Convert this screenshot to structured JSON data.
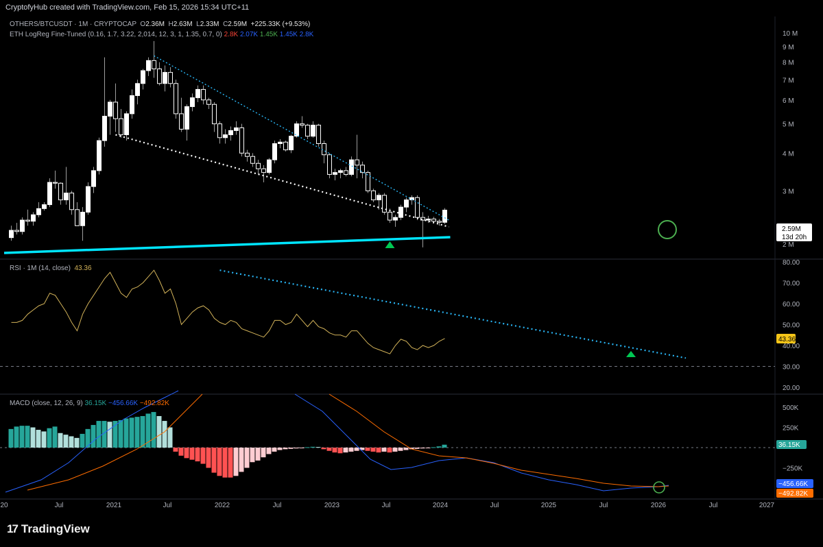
{
  "top_bar": {
    "credit": "CryptofyHub created with TradingView.com, Feb 15, 2026 15:34 UTC+11"
  },
  "header": {
    "symbol": "OTHERS/BTCUSDT · 1M · CRYPTOCAP",
    "ohlc": {
      "o_label": "O",
      "o": "2.36M",
      "h_label": "H",
      "h": "2.63M",
      "l_label": "L",
      "l": "2.33M",
      "c_label": "C",
      "c": "2.59M",
      "change": "+225.33K (+9.53%)"
    },
    "indicator": "ETH LogReg Fine-Tuned (0.16, 1.7, 3.22, 2,014, 12, 3, 1, 1.35, 0.7, 0)",
    "indicator_values": [
      {
        "text": "2.8K",
        "color": "#f44336"
      },
      {
        "text": "2.07K",
        "color": "#2962ff"
      },
      {
        "text": "1.45K",
        "color": "#4caf50"
      },
      {
        "text": "1.45K",
        "color": "#2962ff"
      },
      {
        "text": "2.8K",
        "color": "#2962ff"
      }
    ]
  },
  "price_axis": {
    "ticks": [
      "10 M",
      "9 M",
      "8 M",
      "7 M",
      "6 M",
      "5 M",
      "4 M",
      "3 M",
      "2 M"
    ]
  },
  "price_badge": {
    "value": "2.59M",
    "countdown": "13d 20h"
  },
  "rsi": {
    "label": "RSI · 1M (14, close)",
    "value": "43.36",
    "ticks": [
      "80.00",
      "70.00",
      "60.00",
      "50.00",
      "40.00",
      "30.00",
      "20.00"
    ]
  },
  "macd": {
    "label": "MACD (close, 12, 26, 9)",
    "values": [
      {
        "text": "36.15K",
        "color": "#26a69a"
      },
      {
        "text": "−456.66K",
        "color": "#2962ff"
      },
      {
        "text": "−492.82K",
        "color": "#ff6d00"
      }
    ],
    "ticks": [
      "500K",
      "250K",
      "−250K"
    ],
    "badges": [
      {
        "text": "36.15K",
        "color": "#26a69a"
      },
      {
        "text": "−456.66K",
        "color": "#2962ff"
      },
      {
        "text": "−492.82K",
        "color": "#ff6d00"
      }
    ]
  },
  "time_axis": {
    "labels": [
      "20",
      "Jul",
      "2021",
      "Jul",
      "2022",
      "Jul",
      "2023",
      "Jul",
      "2024",
      "Jul",
      "2025",
      "Jul",
      "2026",
      "Jul",
      "2027"
    ]
  },
  "brand": {
    "name": "TradingView"
  },
  "colors": {
    "candle_up": "#ffffff",
    "candle_down": "#ffffff",
    "wick": "#9e9e9e",
    "trend_upper": "#29b6f6",
    "trend_lower": "#ffffff",
    "support": "#00e5ff",
    "rsi_line": "#d4b45a",
    "rsi_trend": "#29b6f6",
    "macd_line": "#2962ff",
    "signal_line": "#ff6d00",
    "hist_pos_strong": "#26a69a",
    "hist_pos_weak": "#b2dfdb",
    "hist_neg_strong": "#ff5252",
    "hist_neg_weak": "#ffcdd2",
    "signal_circle": "#4caf50",
    "signal_arrow": "#00c853"
  },
  "chart_data": [
    {
      "type": "candlestick",
      "title": "OTHERS/BTCUSDT · 1M · CRYPTOCAP",
      "scale": "log",
      "ylim": [
        2000000,
        10000000
      ],
      "x_start": "2020-03",
      "interval": "1M",
      "ohlc": [
        [
          2.1,
          2.3,
          2.05,
          2.22
        ],
        [
          2.22,
          2.35,
          2.15,
          2.2
        ],
        [
          2.2,
          2.45,
          2.15,
          2.4
        ],
        [
          2.4,
          2.6,
          2.3,
          2.38
        ],
        [
          2.38,
          2.55,
          2.3,
          2.5
        ],
        [
          2.5,
          2.75,
          2.45,
          2.62
        ],
        [
          2.62,
          2.75,
          2.58,
          2.7
        ],
        [
          2.7,
          3.3,
          2.65,
          3.2
        ],
        [
          3.2,
          3.5,
          3.05,
          3.18
        ],
        [
          3.18,
          3.2,
          2.7,
          2.8
        ],
        [
          2.8,
          3.6,
          2.7,
          2.95
        ],
        [
          2.95,
          3.0,
          2.5,
          2.6
        ],
        [
          2.6,
          2.75,
          2.3,
          2.3
        ],
        [
          2.3,
          2.65,
          2.05,
          2.55
        ],
        [
          2.55,
          3.2,
          2.5,
          3.1
        ],
        [
          3.1,
          3.6,
          2.95,
          3.5
        ],
        [
          3.5,
          4.5,
          3.4,
          4.4
        ],
        [
          4.4,
          8.3,
          4.2,
          5.3
        ],
        [
          5.3,
          6.0,
          4.6,
          5.9
        ],
        [
          5.9,
          6.8,
          4.7,
          5.2
        ],
        [
          5.2,
          5.6,
          4.5,
          4.6
        ],
        [
          4.6,
          5.5,
          4.4,
          5.4
        ],
        [
          5.4,
          6.5,
          5.2,
          6.2
        ],
        [
          6.2,
          7.0,
          5.8,
          6.8
        ],
        [
          6.8,
          7.6,
          6.5,
          7.5
        ],
        [
          7.5,
          8.3,
          7.2,
          8.1
        ],
        [
          8.1,
          9.4,
          7.1,
          7.6
        ],
        [
          7.6,
          8.0,
          6.7,
          6.8
        ],
        [
          6.8,
          7.8,
          6.4,
          7.4
        ],
        [
          7.4,
          7.7,
          6.6,
          6.8
        ],
        [
          6.8,
          7.0,
          5.2,
          5.4
        ],
        [
          5.4,
          6.1,
          4.7,
          4.8
        ],
        [
          4.8,
          5.8,
          4.4,
          5.7
        ],
        [
          5.7,
          6.3,
          5.5,
          6.1
        ],
        [
          6.1,
          6.7,
          5.9,
          6.5
        ],
        [
          6.5,
          6.7,
          5.8,
          6.0
        ],
        [
          6.0,
          6.1,
          5.6,
          5.8
        ],
        [
          5.8,
          5.9,
          4.7,
          5.0
        ],
        [
          5.0,
          5.1,
          4.3,
          4.5
        ],
        [
          4.5,
          4.8,
          4.3,
          4.6
        ],
        [
          4.6,
          4.9,
          4.4,
          4.75
        ],
        [
          4.75,
          5.1,
          4.6,
          4.85
        ],
        [
          4.85,
          5.0,
          3.9,
          4.0
        ],
        [
          4.0,
          4.1,
          3.75,
          3.9
        ],
        [
          3.9,
          4.0,
          3.6,
          3.7
        ],
        [
          3.7,
          3.8,
          3.4,
          3.55
        ],
        [
          3.55,
          3.65,
          3.2,
          3.45
        ],
        [
          3.45,
          3.85,
          3.4,
          3.8
        ],
        [
          3.8,
          4.4,
          3.7,
          4.3
        ],
        [
          4.3,
          4.45,
          4.15,
          4.35
        ],
        [
          4.35,
          4.4,
          4.05,
          4.1
        ],
        [
          4.1,
          4.6,
          4.0,
          4.55
        ],
        [
          4.55,
          5.1,
          4.5,
          5.0
        ],
        [
          5.0,
          5.3,
          4.85,
          4.95
        ],
        [
          4.95,
          5.0,
          4.45,
          4.55
        ],
        [
          4.55,
          5.1,
          4.5,
          4.95
        ],
        [
          4.95,
          5.0,
          4.2,
          4.3
        ],
        [
          4.3,
          4.4,
          3.7,
          3.95
        ],
        [
          3.95,
          4.0,
          3.3,
          3.4
        ],
        [
          3.4,
          3.55,
          3.25,
          3.45
        ],
        [
          3.45,
          3.55,
          3.3,
          3.5
        ],
        [
          3.5,
          3.6,
          3.35,
          3.4
        ],
        [
          3.4,
          3.9,
          3.35,
          3.8
        ],
        [
          3.8,
          4.6,
          3.3,
          3.65
        ],
        [
          3.65,
          3.75,
          3.3,
          3.45
        ],
        [
          3.45,
          3.5,
          2.95,
          3.0
        ],
        [
          3.0,
          3.05,
          2.75,
          2.8
        ],
        [
          2.8,
          2.95,
          2.6,
          2.9
        ],
        [
          2.9,
          2.95,
          2.5,
          2.55
        ],
        [
          2.55,
          2.62,
          2.35,
          2.4
        ],
        [
          2.4,
          2.5,
          2.28,
          2.45
        ],
        [
          2.45,
          2.7,
          2.4,
          2.65
        ],
        [
          2.65,
          2.85,
          2.55,
          2.8
        ],
        [
          2.8,
          2.9,
          2.7,
          2.85
        ],
        [
          2.85,
          2.9,
          2.4,
          2.45
        ],
        [
          2.45,
          2.55,
          1.95,
          2.4
        ],
        [
          2.4,
          2.48,
          2.35,
          2.42
        ],
        [
          2.42,
          2.46,
          2.36,
          2.38
        ],
        [
          2.38,
          2.42,
          2.3,
          2.36
        ],
        [
          2.36,
          2.63,
          2.33,
          2.59
        ]
      ],
      "annotations": [
        "descending wedge upper trendline",
        "descending wedge lower trendline",
        "horizontal support line",
        "breakout circle",
        "buy arrow"
      ]
    },
    {
      "type": "line",
      "title": "RSI · 1M (14, close)",
      "ylim": [
        20,
        80
      ],
      "reference_line": 30,
      "values": [
        51,
        51,
        52,
        55,
        57,
        59,
        60,
        65,
        64,
        60,
        56,
        51,
        47,
        55,
        60,
        64,
        68,
        72,
        75,
        70,
        65,
        63,
        67,
        68,
        70,
        73,
        76,
        71,
        65,
        67,
        60,
        50,
        53,
        56,
        58,
        59,
        57,
        53,
        51,
        50,
        52,
        51,
        48,
        47,
        46,
        45,
        44,
        47,
        52,
        52,
        50,
        51,
        55,
        52,
        49,
        52,
        49,
        48,
        46,
        45,
        45,
        44,
        47,
        47,
        44,
        41,
        39,
        38,
        37,
        36,
        40,
        43,
        42,
        39,
        38,
        40,
        39,
        40,
        42,
        43.36
      ]
    },
    {
      "type": "line",
      "title": "MACD (close, 12, 26, 9)",
      "ylim": [
        -540000,
        600000
      ],
      "series": [
        {
          "name": "Histogram",
          "values": [
            230,
            260,
            270,
            270,
            250,
            220,
            200,
            240,
            260,
            180,
            160,
            140,
            120,
            170,
            230,
            280,
            330,
            330,
            320,
            330,
            340,
            360,
            370,
            380,
            390,
            420,
            440,
            390,
            330,
            250,
            -50,
            -100,
            -130,
            -150,
            -170,
            -200,
            -250,
            -310,
            -350,
            -370,
            -370,
            -350,
            -300,
            -250,
            -180,
            -160,
            -120,
            -80,
            -50,
            -30,
            -20,
            -15,
            -10,
            -5,
            5,
            10,
            8,
            -20,
            -40,
            -60,
            -70,
            -60,
            -50,
            -40,
            -30,
            -40,
            -50,
            -60,
            -50,
            -60,
            -50,
            -40,
            -30,
            -20,
            -15,
            -10,
            -5,
            5,
            15,
            36.15
          ]
        }
      ]
    }
  ]
}
